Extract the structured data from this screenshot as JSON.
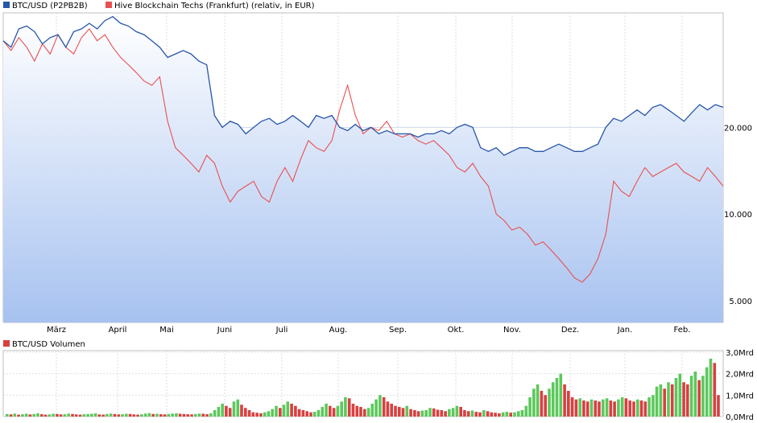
{
  "chart_data": [
    {
      "type": "line",
      "log_scale": true,
      "grid": true,
      "legend_placement": "top-left",
      "x_ticks": [
        "März",
        "April",
        "Mai",
        "Juni",
        "Juli",
        "Aug.",
        "Sep.",
        "Okt.",
        "Nov.",
        "Dez.",
        "Jan.",
        "Feb."
      ],
      "y_ticks": [
        "20.000",
        "10.000",
        "5.000"
      ],
      "y_tick_values": [
        20000,
        10000,
        5000
      ],
      "ylim": [
        4200,
        50000
      ],
      "series": [
        {
          "name": "BTC/USD (P2PB2B)",
          "color": "#2856a8",
          "values": [
            40000,
            38000,
            44000,
            45000,
            43000,
            39000,
            41000,
            42000,
            38000,
            43000,
            44000,
            46000,
            44000,
            47000,
            48500,
            46000,
            45000,
            43000,
            42000,
            40000,
            38000,
            35000,
            36000,
            37000,
            36000,
            34000,
            33000,
            22000,
            20000,
            21000,
            20500,
            19000,
            20000,
            21000,
            21500,
            20500,
            21000,
            22000,
            21000,
            20000,
            22000,
            21500,
            22000,
            20000,
            19500,
            20500,
            19500,
            20000,
            19000,
            19500,
            19000,
            19000,
            19000,
            18500,
            19000,
            19000,
            19500,
            19000,
            20000,
            20500,
            20000,
            17000,
            16500,
            17000,
            16000,
            16500,
            17000,
            17000,
            16500,
            16500,
            17000,
            17500,
            17000,
            16500,
            16500,
            17000,
            17500,
            20000,
            21500,
            21000,
            22000,
            23000,
            22000,
            23500,
            24000,
            23000,
            22000,
            21000,
            22500,
            24000,
            23000,
            24000,
            23500
          ]
        },
        {
          "name": "Hive Blockchain Techs (Frankfurt) (relativ, in EUR)",
          "color": "#e85050",
          "values": [
            40000,
            37000,
            41000,
            38000,
            34000,
            39000,
            36000,
            42000,
            38000,
            36000,
            41000,
            44000,
            40000,
            42000,
            38000,
            35000,
            33000,
            31000,
            29000,
            28000,
            30000,
            21000,
            17000,
            16000,
            15000,
            14000,
            16000,
            15000,
            12500,
            11000,
            12000,
            12500,
            13000,
            11500,
            11000,
            13000,
            14500,
            13000,
            15500,
            18000,
            17000,
            16500,
            18000,
            23000,
            28000,
            22000,
            19000,
            20000,
            19500,
            21000,
            19000,
            18500,
            19000,
            18000,
            17500,
            18000,
            17000,
            16000,
            14500,
            14000,
            15000,
            13500,
            12500,
            10000,
            9500,
            8800,
            9000,
            8500,
            7800,
            8000,
            7500,
            7000,
            6500,
            6000,
            5800,
            6200,
            7000,
            8500,
            13000,
            12000,
            11500,
            13000,
            14500,
            13500,
            14000,
            14500,
            15000,
            14000,
            13500,
            13000,
            14500,
            13500,
            12500
          ]
        }
      ]
    },
    {
      "type": "bar",
      "grid": true,
      "legend_placement": "top-left",
      "x_ticks": [
        "März",
        "April",
        "Mai",
        "Juni",
        "Juli",
        "Aug.",
        "Sep.",
        "Okt.",
        "Nov.",
        "Dez.",
        "Jan.",
        "Feb."
      ],
      "y_ticks": [
        "3,0Mrd",
        "2,0Mrd",
        "1,0Mrd",
        "0,0Mrd"
      ],
      "y_tick_values": [
        3.0,
        2.0,
        1.0,
        0.0
      ],
      "ylim": [
        0,
        3.0
      ],
      "series": [
        {
          "name": "BTC/USD Volumen",
          "color": "#e85050",
          "up_color": "#5cc85c",
          "down_color": "#d84040",
          "values": [
            0.12,
            0.1,
            0.14,
            0.09,
            0.11,
            0.13,
            0.1,
            0.12,
            0.15,
            0.11,
            0.09,
            0.1,
            0.13,
            0.12,
            0.1,
            0.11,
            0.14,
            0.12,
            0.1,
            0.09,
            0.11,
            0.12,
            0.13,
            0.15,
            0.1,
            0.09,
            0.12,
            0.14,
            0.12,
            0.1,
            0.11,
            0.13,
            0.12,
            0.1,
            0.09,
            0.11,
            0.14,
            0.16,
            0.12,
            0.13,
            0.11,
            0.1,
            0.12,
            0.14,
            0.15,
            0.13,
            0.12,
            0.11,
            0.1,
            0.12,
            0.14,
            0.13,
            0.11,
            0.15,
            0.3,
            0.45,
            0.6,
            0.5,
            0.4,
            0.7,
            0.8,
            0.55,
            0.4,
            0.3,
            0.2,
            0.18,
            0.15,
            0.2,
            0.25,
            0.35,
            0.5,
            0.4,
            0.55,
            0.7,
            0.6,
            0.5,
            0.35,
            0.3,
            0.25,
            0.2,
            0.22,
            0.3,
            0.45,
            0.6,
            0.5,
            0.4,
            0.5,
            0.7,
            0.9,
            0.85,
            0.6,
            0.5,
            0.45,
            0.35,
            0.4,
            0.6,
            0.8,
            1.0,
            0.9,
            0.7,
            0.6,
            0.5,
            0.45,
            0.4,
            0.5,
            0.35,
            0.3,
            0.25,
            0.28,
            0.3,
            0.4,
            0.38,
            0.32,
            0.3,
            0.25,
            0.35,
            0.4,
            0.5,
            0.45,
            0.3,
            0.25,
            0.28,
            0.22,
            0.2,
            0.3,
            0.25,
            0.2,
            0.18,
            0.15,
            0.2,
            0.22,
            0.18,
            0.2,
            0.25,
            0.3,
            0.5,
            0.9,
            1.3,
            1.5,
            1.2,
            1.0,
            1.3,
            1.6,
            1.8,
            2.0,
            1.5,
            1.2,
            0.9,
            0.8,
            0.85,
            0.75,
            0.7,
            0.8,
            0.75,
            0.7,
            0.8,
            0.85,
            0.75,
            0.7,
            0.8,
            0.9,
            0.85,
            0.75,
            0.7,
            0.8,
            0.75,
            0.7,
            0.9,
            1.0,
            1.4,
            1.5,
            1.3,
            1.6,
            1.5,
            1.8,
            2.0,
            1.6,
            1.5,
            1.9,
            2.1,
            1.7,
            1.9,
            2.3,
            2.7,
            2.5,
            1.0
          ]
        }
      ]
    }
  ]
}
